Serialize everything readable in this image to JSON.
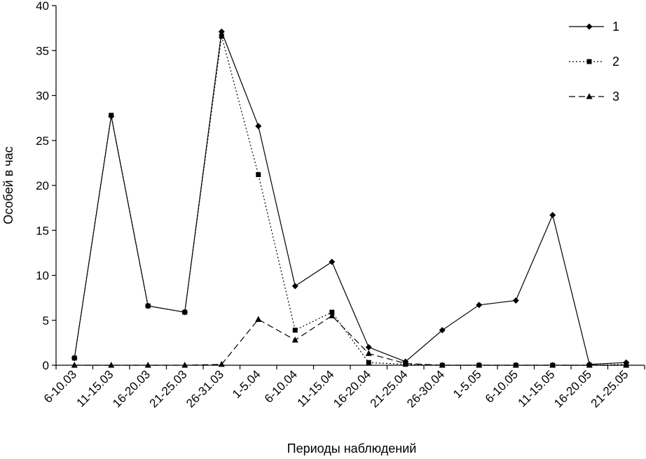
{
  "chart_data": {
    "type": "line",
    "title": "",
    "xlabel": "Периоды наблюдений",
    "ylabel": "Особей в час",
    "ylim": [
      0,
      40
    ],
    "yticks": [
      0,
      5,
      10,
      15,
      20,
      25,
      30,
      35,
      40
    ],
    "grid": false,
    "legend_position": "top-right",
    "categories": [
      "6-10.03",
      "11-15.03",
      "16-20.03",
      "21-25.03",
      "26-31.03",
      "1-5.04",
      "6-10.04",
      "11-15.04",
      "16-20.04",
      "21-25.04",
      "26-30.04",
      "1-5.05",
      "6-10.05",
      "11-15.05",
      "16-20.05",
      "21-25.05"
    ],
    "series": [
      {
        "name": "1",
        "marker": "diamond",
        "dash": "solid",
        "color": "#000000",
        "values": [
          0.8,
          27.7,
          6.6,
          5.9,
          37.1,
          26.6,
          8.8,
          11.5,
          2.0,
          0.4,
          3.9,
          6.7,
          7.2,
          16.7,
          0.1,
          0.3
        ]
      },
      {
        "name": "2",
        "marker": "square",
        "dash": "dotted",
        "color": "#000000",
        "values": [
          0.8,
          27.8,
          6.6,
          5.9,
          36.6,
          21.2,
          3.9,
          5.9,
          0.3,
          0.1,
          0.0,
          0.0,
          0.0,
          0.0,
          0.0,
          0.1
        ]
      },
      {
        "name": "3",
        "marker": "triangle",
        "dash": "dashed",
        "color": "#000000",
        "values": [
          0.0,
          0.0,
          0.0,
          0.0,
          0.1,
          5.1,
          2.8,
          5.5,
          1.3,
          0.2,
          0.0,
          0.0,
          0.0,
          0.0,
          0.0,
          0.0
        ]
      }
    ]
  }
}
